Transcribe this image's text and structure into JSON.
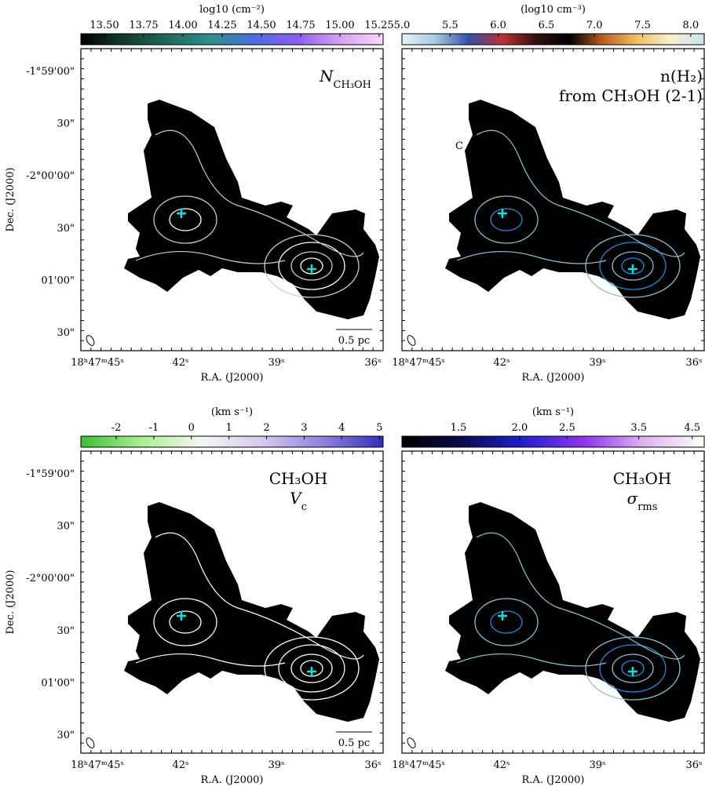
{
  "chart_data": [
    {
      "type": "map",
      "colorbar_label": "log10 (cm⁻²)",
      "colorbar_lim": [
        13.35,
        15.275
      ],
      "colorbar_ticks": [
        {
          "value": 13.5,
          "label": "13.50"
        },
        13.75,
        {
          "value": 14,
          "label": "14.00"
        },
        14.25,
        {
          "value": 14.5,
          "label": "14.50"
        },
        14.75,
        {
          "value": 15,
          "label": "15.00"
        },
        15.25
      ],
      "colormap": [
        "#000000",
        "#143a2e",
        "#1f6a5a",
        "#2e8e8e",
        "#4a6ee0",
        "#8a5ef0",
        "#d8a0f0",
        "#f8d8f8"
      ],
      "annotations": [
        {
          "text": "N",
          "sub": "CH₃OH"
        }
      ],
      "scale_bar": "0.5 pc",
      "xlabel": "R.A. (J2000)",
      "ylabel": "Dec. (J2000)",
      "xtick_labels": [
        "18ʰ47ᵐ45ˢ",
        "42ˢ",
        "39ˢ",
        "36ˢ"
      ],
      "ytick_labels": [
        "-1°59'00\"",
        "30\"",
        "-2°00'00\"",
        "30\"",
        "01'00\"",
        "30\""
      ]
    },
    {
      "type": "map",
      "colorbar_label": "(log10 cm⁻³)",
      "colorbar_lim": [
        5.0,
        8.14
      ],
      "colorbar_ticks": [
        {
          "value": 5,
          "label": "5.0"
        },
        5.5,
        {
          "value": 6,
          "label": "6.0"
        },
        6.5,
        {
          "value": 7,
          "label": "7.0"
        },
        7.5,
        {
          "value": 8,
          "label": "8.0"
        }
      ],
      "colormap": [
        "#e8f2f8",
        "#a8c8e0",
        "#3050a8",
        "#c03030",
        "#301010",
        "#000000",
        "#c06020",
        "#f0c060",
        "#f8f0d0",
        "#c8e4f0"
      ],
      "annotations": [
        "n(H₂)",
        "from CH₃OH (2-1)"
      ],
      "marker_label": "C",
      "xlabel": "R.A. (J2000)",
      "xtick_labels": [
        "18ʰ47ᵐ45ˢ",
        "42ˢ",
        "39ˢ",
        "36ˢ"
      ]
    },
    {
      "type": "map",
      "colorbar_label": "(km s⁻¹)",
      "colorbar_lim": [
        -2.94,
        5.1
      ],
      "colorbar_ticks": [
        -2,
        -1,
        0,
        1,
        2,
        3,
        4,
        5
      ],
      "colormap": [
        "#3ac030",
        "#a8f090",
        "#f4f8f0",
        "#d8c8f0",
        "#9080e0",
        "#3030c0"
      ],
      "annotations": [
        "CH₃OH",
        {
          "text": "V",
          "sub": "c"
        }
      ],
      "scale_bar": "0.5 pc",
      "xlabel": "R.A. (J2000)",
      "ylabel": "Dec. (J2000)",
      "xtick_labels": [
        "18ʰ47ᵐ45ˢ",
        "42ˢ",
        "39ˢ",
        "36ˢ"
      ],
      "ytick_labels": [
        "-1°59'00\"",
        "30\"",
        "-2°00'00\"",
        "30\"",
        "01'00\"",
        "30\""
      ]
    },
    {
      "type": "map",
      "colorbar_label": "(km s⁻¹)",
      "colorbar_lim": [
        1.15,
        4.76
      ],
      "colorbar_log": true,
      "colorbar_ticks": [
        1.5,
        {
          "value": 2,
          "label": "2.0"
        },
        2.5,
        3.5,
        4.5
      ],
      "colormap": [
        "#000000",
        "#0a0a50",
        "#2020d0",
        "#9030f0",
        "#e0b0f0",
        "#ffffff"
      ],
      "annotations": [
        "CH₃OH",
        {
          "text": "σ",
          "sub": "rms"
        }
      ],
      "xlabel": "R.A. (J2000)",
      "xtick_labels": [
        "18ʰ47ᵐ45ˢ",
        "42ˢ",
        "39ˢ",
        "36ˢ"
      ]
    }
  ]
}
